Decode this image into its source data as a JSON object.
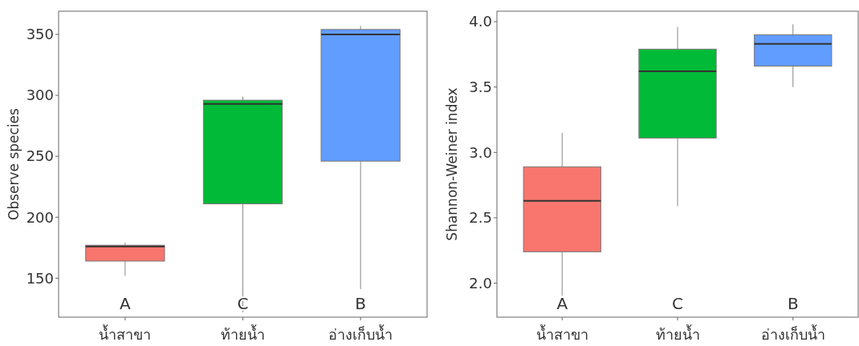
{
  "chart_data": [
    {
      "type": "box",
      "ylabel": "Observe species",
      "categories": [
        "น้ำสาขา",
        "ท้ายน้ำ",
        "อ่างเก็บน้ำ"
      ],
      "colors": [
        "#f8766d",
        "#00ba38",
        "#619cff"
      ],
      "boxes": [
        {
          "low": 152,
          "q1": 164,
          "median": 176,
          "q3": 177,
          "high": 179
        },
        {
          "low": 122,
          "q1": 211,
          "median": 293,
          "q3": 296,
          "high": 299
        },
        {
          "low": 141,
          "q1": 246,
          "median": 350,
          "q3": 354,
          "high": 357
        }
      ],
      "ylim": [
        118,
        369
      ],
      "yticks": [
        150,
        200,
        250,
        300,
        350
      ],
      "grid": false,
      "annotations": [
        "A",
        "C",
        "B"
      ]
    },
    {
      "type": "box",
      "ylabel": "Shannon-Weiner index",
      "categories": [
        "น้ำสาขา",
        "ท้ายน้ำ",
        "อ่างเก็บน้ำ"
      ],
      "colors": [
        "#f8766d",
        "#00ba38",
        "#619cff"
      ],
      "boxes": [
        {
          "low": 1.88,
          "q1": 2.24,
          "median": 2.63,
          "q3": 2.89,
          "high": 3.15
        },
        {
          "low": 2.59,
          "q1": 3.11,
          "median": 3.62,
          "q3": 3.79,
          "high": 3.96
        },
        {
          "low": 3.5,
          "q1": 3.66,
          "median": 3.83,
          "q3": 3.9,
          "high": 3.98
        }
      ],
      "ylim": [
        1.74,
        4.08
      ],
      "yticks": [
        {
          "value": 2,
          "label": "2.0"
        },
        2.5,
        {
          "value": 3,
          "label": "3.0"
        },
        3.5,
        {
          "value": 4,
          "label": "4.0"
        }
      ],
      "grid": false,
      "annotations": [
        "A",
        "C",
        "B"
      ]
    }
  ]
}
